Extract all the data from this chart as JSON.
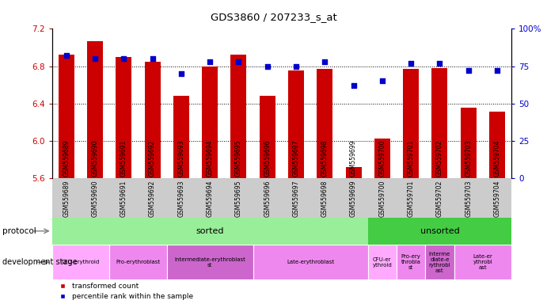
{
  "title": "GDS3860 / 207233_s_at",
  "samples": [
    "GSM559689",
    "GSM559690",
    "GSM559691",
    "GSM559692",
    "GSM559693",
    "GSM559694",
    "GSM559695",
    "GSM559696",
    "GSM559697",
    "GSM559698",
    "GSM559699",
    "GSM559700",
    "GSM559701",
    "GSM559702",
    "GSM559703",
    "GSM559704"
  ],
  "bar_values": [
    6.92,
    7.07,
    6.9,
    6.85,
    6.48,
    6.8,
    6.92,
    6.48,
    6.75,
    6.77,
    5.72,
    6.02,
    6.77,
    6.78,
    6.35,
    6.31
  ],
  "dot_values": [
    82,
    80,
    80,
    80,
    70,
    78,
    78,
    75,
    75,
    78,
    62,
    65,
    77,
    77,
    72,
    72
  ],
  "ymin": 5.6,
  "ymax": 7.2,
  "yticks": [
    5.6,
    6.0,
    6.4,
    6.8,
    7.2
  ],
  "right_yticks": [
    0,
    25,
    50,
    75,
    100
  ],
  "right_ytick_labels": [
    "0",
    "25",
    "50",
    "75",
    "100%"
  ],
  "bar_color": "#cc0000",
  "dot_color": "#0000cc",
  "sample_label_bg": "#cccccc",
  "protocol_sorted_color": "#99ee99",
  "protocol_unsorted_color": "#44cc44",
  "dev_stage_groups_sorted": [
    {
      "label": "CFU-erythroid",
      "start": 0,
      "end": 2,
      "color": "#ffaaff"
    },
    {
      "label": "Pro-erythroblast",
      "start": 2,
      "end": 4,
      "color": "#ee88ee"
    },
    {
      "label": "Intermediate-erythroblast\nst",
      "start": 4,
      "end": 7,
      "color": "#cc66cc"
    },
    {
      "label": "Late-erythroblast",
      "start": 7,
      "end": 11,
      "color": "#ee88ee"
    }
  ],
  "dev_stage_groups_unsorted": [
    {
      "label": "CFU-er\nythroid",
      "start": 11,
      "end": 12,
      "color": "#ffaaff"
    },
    {
      "label": "Pro-ery\nthrobla\nst",
      "start": 12,
      "end": 13,
      "color": "#ee88ee"
    },
    {
      "label": "Interme\ndiate-e\nrythrobl\nast",
      "start": 13,
      "end": 14,
      "color": "#cc66cc"
    },
    {
      "label": "Late-er\nythrobl\nast",
      "start": 14,
      "end": 16,
      "color": "#ee88ee"
    }
  ],
  "n_sorted": 11,
  "n_total": 16
}
